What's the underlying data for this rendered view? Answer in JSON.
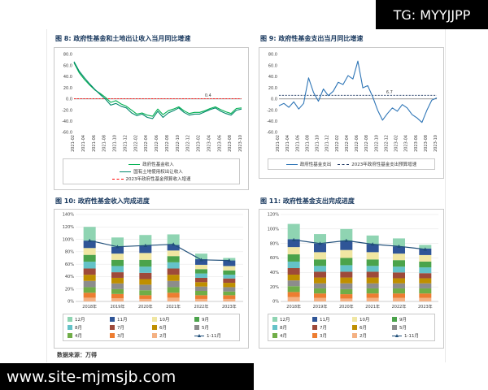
{
  "colors": {
    "title": "#16365C",
    "wm_bg": "#000000",
    "wm_text": "#ffffff",
    "frame_border": "#e8e8e8"
  },
  "watermarks": {
    "top_right": "TG: MYYJJPP",
    "bottom_left": "www.site-mjmsjb.com"
  },
  "source": "数据来源：万得",
  "chart_data": [
    {
      "id": "chart8",
      "type": "line",
      "title": "图 8: 政府性基金和土地出让收入当月同比增速",
      "ylim": [
        -60,
        80
      ],
      "yticks": [
        80,
        60,
        40,
        20,
        0,
        -20,
        -40,
        -60
      ],
      "legend_position": "bottom",
      "x_labels": [
        "2021-02",
        "2021-04",
        "2021-06",
        "2021-08",
        "2021-10",
        "2021-12",
        "2022-02",
        "2022-04",
        "2022-06",
        "2022-08",
        "2022-10",
        "2022-12",
        "2023-02",
        "2023-04",
        "2023-06",
        "2023-08",
        "2023-10"
      ],
      "series": [
        {
          "name": "政府性基金收入",
          "color": "#00B050",
          "values": [
            65,
            47,
            35,
            25,
            16,
            10,
            3,
            -6,
            -3,
            -9,
            -13,
            -20,
            -27,
            -25,
            -29,
            -31,
            -18,
            -28,
            -21,
            -18,
            -14,
            -21,
            -26,
            -24,
            -24,
            -21,
            -17,
            -14,
            -19,
            -23,
            -26,
            -17,
            -16
          ]
        },
        {
          "name": "国有土地使用权出让收入",
          "color": "#00876B",
          "values": [
            67,
            50,
            38,
            27,
            17,
            8,
            0,
            -11,
            -8,
            -13,
            -16,
            -25,
            -30,
            -27,
            -33,
            -35,
            -22,
            -33,
            -25,
            -21,
            -16,
            -24,
            -29,
            -27,
            -27,
            -23,
            -19,
            -16,
            -22,
            -26,
            -29,
            -20,
            -18
          ]
        }
      ],
      "ref_line": {
        "name": "2023年政府性基金预算收入增速",
        "value": 0.4,
        "label": "0.4",
        "color": "#FF0000",
        "label_x": 0.8
      }
    },
    {
      "id": "chart9",
      "type": "line",
      "title": "图 9: 政府性基金支出当月同比增速",
      "ylim": [
        -60,
        80
      ],
      "yticks": [
        80,
        60,
        40,
        20,
        0,
        -20,
        -40,
        -60
      ],
      "legend_position": "bottom",
      "x_labels": [
        "2021-02",
        "2021-04",
        "2021-06",
        "2021-08",
        "2021-10",
        "2021-12",
        "2022-02",
        "2022-04",
        "2022-06",
        "2022-08",
        "2022-10",
        "2022-12",
        "2023-02",
        "2023-04",
        "2023-06",
        "2023-08",
        "2023-10"
      ],
      "series": [
        {
          "name": "政府性基金支出",
          "color": "#2E75B6",
          "values": [
            -12,
            -8,
            -15,
            -5,
            -18,
            -8,
            38,
            12,
            -4,
            18,
            6,
            14,
            30,
            26,
            42,
            36,
            68,
            20,
            24,
            4,
            -20,
            -38,
            -26,
            -16,
            -22,
            -10,
            -16,
            -28,
            -34,
            -42,
            -20,
            -2,
            2
          ]
        }
      ],
      "ref_line": {
        "name": "2023年政府性基金支出预算增速",
        "value": 6.7,
        "label": "6.7",
        "color": "#1F3864",
        "label_x": 0.7
      }
    },
    {
      "id": "chart10",
      "type": "stacked-bar",
      "title": "图 10: 政府性基金收入完成进度",
      "ylim": [
        0,
        140
      ],
      "yticks": [
        0,
        20,
        40,
        60,
        80,
        100,
        120,
        140
      ],
      "legend_position": "bottom",
      "years": [
        "2018年",
        "2019年",
        "2020年",
        "2021年",
        "2022年",
        "2023年"
      ],
      "months": [
        {
          "label": "2月",
          "color": "#F4B183"
        },
        {
          "label": "3月",
          "color": "#ED7D31"
        },
        {
          "label": "4月",
          "color": "#70AD47"
        },
        {
          "label": "5月",
          "color": "#8C8C8C"
        },
        {
          "label": "6月",
          "color": "#BF8F00"
        },
        {
          "label": "7月",
          "color": "#9E4A3A"
        },
        {
          "label": "8月",
          "color": "#64C2C8"
        },
        {
          "label": "9月",
          "color": "#4BA34B"
        },
        {
          "label": "10月",
          "color": "#F0E6A2"
        },
        {
          "label": "11月",
          "color": "#2F5597"
        },
        {
          "label": "12月",
          "color": "#8FD4B2"
        }
      ],
      "values": [
        [
          6,
          8,
          9,
          10,
          10,
          10,
          11,
          11,
          11,
          12,
          22
        ],
        [
          5,
          7,
          8,
          9,
          9,
          9,
          10,
          10,
          10,
          11,
          15
        ],
        [
          4,
          6,
          8,
          9,
          9,
          10,
          10,
          11,
          11,
          12,
          17
        ],
        [
          6,
          8,
          9,
          10,
          10,
          10,
          10,
          10,
          9,
          9,
          17
        ],
        [
          4,
          6,
          7,
          7,
          7,
          7,
          7,
          7,
          7,
          9,
          9
        ],
        [
          4,
          6,
          6,
          7,
          7,
          7,
          6,
          7,
          7,
          9,
          4
        ]
      ],
      "line": {
        "label": "1-11月",
        "color": "#1F4E79",
        "values": [
          98,
          88,
          90,
          92,
          67,
          66
        ]
      },
      "legend_order": [
        "12月",
        "11月",
        "10月",
        "9月",
        "8月",
        "7月",
        "6月",
        "5月",
        "4月",
        "3月",
        "2月",
        "1-11月"
      ]
    },
    {
      "id": "chart11",
      "type": "stacked-bar",
      "title": "图 11: 政府性基金支出完成进度",
      "ylim": [
        0,
        120
      ],
      "yticks": [
        0,
        20,
        40,
        60,
        80,
        100,
        120
      ],
      "legend_position": "bottom",
      "years": [
        "2018年",
        "2019年",
        "2020年",
        "2021年",
        "2022年",
        "2023年"
      ],
      "months": [
        {
          "label": "2月",
          "color": "#F4B183"
        },
        {
          "label": "3月",
          "color": "#ED7D31"
        },
        {
          "label": "4月",
          "color": "#70AD47"
        },
        {
          "label": "5月",
          "color": "#8C8C8C"
        },
        {
          "label": "6月",
          "color": "#BF8F00"
        },
        {
          "label": "7月",
          "color": "#9E4A3A"
        },
        {
          "label": "8月",
          "color": "#64C2C8"
        },
        {
          "label": "9月",
          "color": "#4BA34B"
        },
        {
          "label": "10月",
          "color": "#F0E6A2"
        },
        {
          "label": "11月",
          "color": "#2F5597"
        },
        {
          "label": "12月",
          "color": "#8FD4B2"
        }
      ],
      "values": [
        [
          6,
          7,
          8,
          8,
          8,
          9,
          9,
          10,
          10,
          11,
          21
        ],
        [
          5,
          6,
          7,
          7,
          8,
          8,
          8,
          9,
          10,
          12,
          13
        ],
        [
          4,
          6,
          7,
          8,
          8,
          8,
          9,
          10,
          11,
          13,
          16
        ],
        [
          5,
          6,
          7,
          7,
          8,
          8,
          8,
          9,
          10,
          11,
          12
        ],
        [
          5,
          6,
          7,
          7,
          7,
          8,
          8,
          9,
          9,
          10,
          11
        ],
        [
          5,
          6,
          7,
          7,
          7,
          7,
          8,
          8,
          9,
          9,
          5
        ]
      ],
      "line": {
        "label": "1-11月",
        "color": "#1F4E79",
        "values": [
          85,
          80,
          84,
          79,
          76,
          72
        ]
      },
      "legend_order": [
        "12月",
        "11月",
        "10月",
        "9月",
        "8月",
        "7月",
        "6月",
        "5月",
        "4月",
        "3月",
        "2月",
        "1-11月"
      ]
    }
  ]
}
